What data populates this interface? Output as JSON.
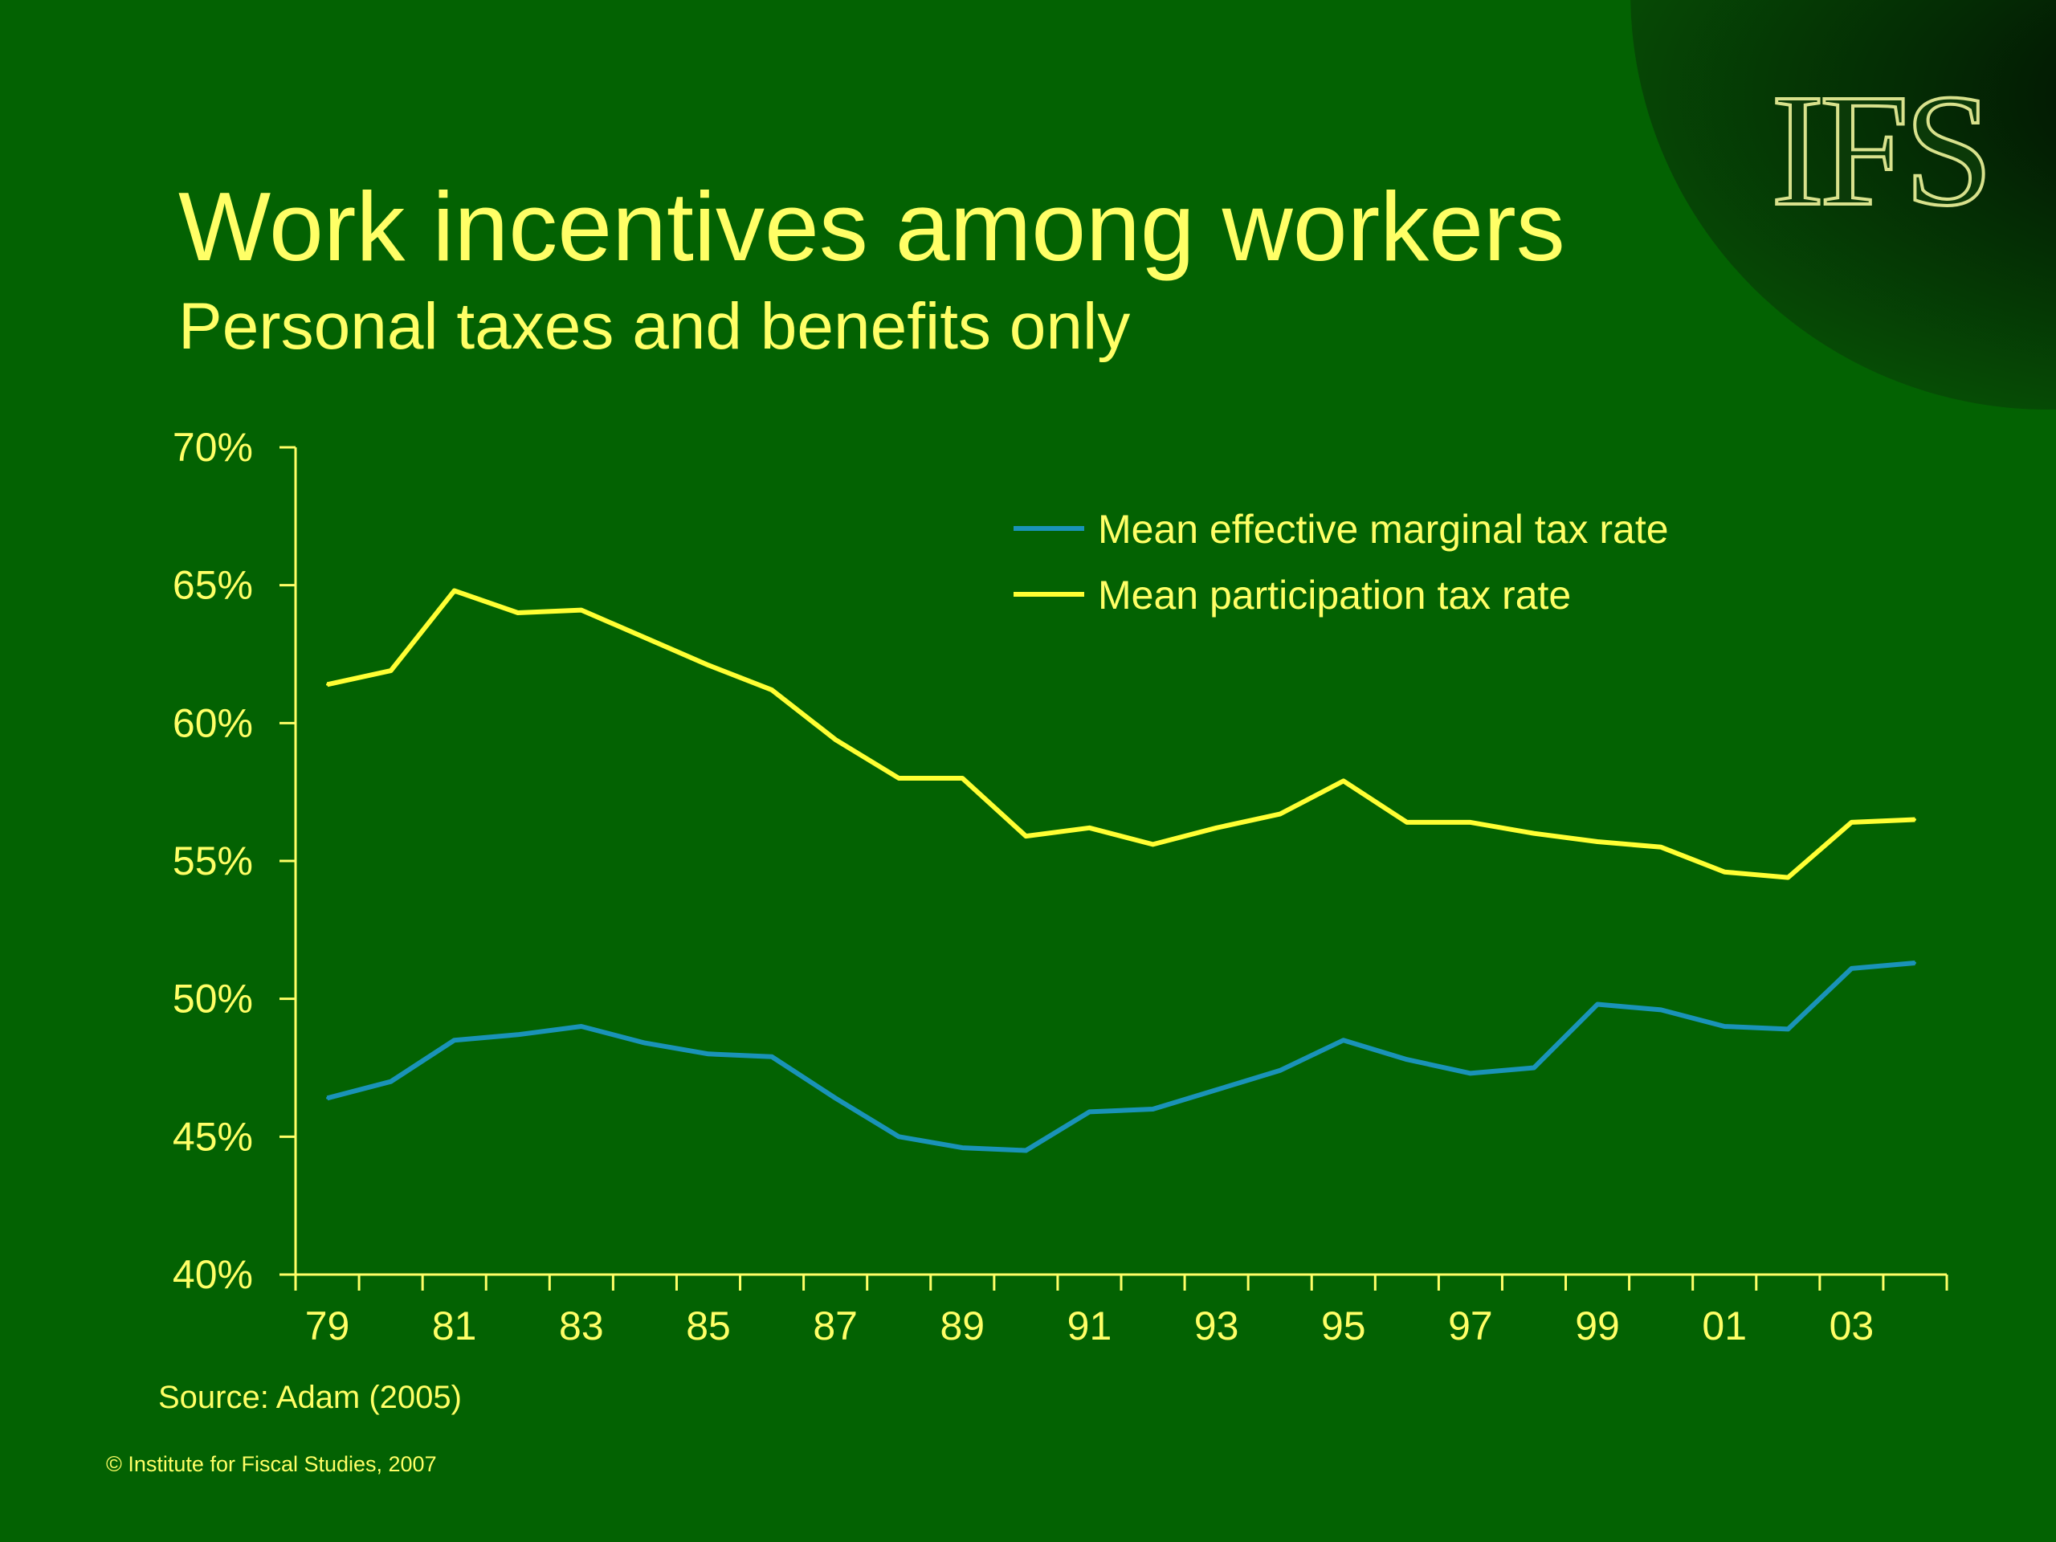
{
  "slide": {
    "logo": "IFS",
    "title": "Work incentives among workers",
    "subtitle": "Personal taxes and benefits only",
    "source": "Source: Adam (2005)",
    "copyright": "© Institute for Fiscal Studies, 2007"
  },
  "colors": {
    "background": "#036202",
    "text": "#ffff66",
    "axis": "#ffff66",
    "marginal_series": "#1a93b8",
    "participation_series": "#ffff33"
  },
  "chart_data": {
    "type": "line",
    "title": "",
    "xlabel": "",
    "ylabel": "",
    "x": [
      1979,
      1980,
      1981,
      1982,
      1983,
      1984,
      1985,
      1986,
      1987,
      1988,
      1989,
      1990,
      1991,
      1992,
      1993,
      1994,
      1995,
      1996,
      1997,
      1998,
      1999,
      2000,
      2001,
      2002,
      2003,
      2004
    ],
    "x_tick_labels": [
      "79",
      "81",
      "83",
      "85",
      "87",
      "89",
      "91",
      "93",
      "95",
      "97",
      "99",
      "01",
      "03"
    ],
    "ylim": [
      40,
      70
    ],
    "y_ticks": [
      40,
      45,
      50,
      55,
      60,
      65,
      70
    ],
    "y_tick_labels": [
      "40%",
      "45%",
      "50%",
      "55%",
      "60%",
      "65%",
      "70%"
    ],
    "legend_position": "top-right",
    "grid": false,
    "series": [
      {
        "name": "Mean effective marginal tax rate",
        "values": [
          46.4,
          47.0,
          48.5,
          48.7,
          49.0,
          48.4,
          48.0,
          47.9,
          46.4,
          45.0,
          44.6,
          44.5,
          45.9,
          46.0,
          46.7,
          47.4,
          48.5,
          47.8,
          47.3,
          47.5,
          49.8,
          49.6,
          49.0,
          48.9,
          51.1,
          51.3
        ]
      },
      {
        "name": "Mean participation tax rate",
        "values": [
          61.4,
          61.9,
          64.8,
          64.0,
          64.1,
          63.1,
          62.1,
          61.2,
          59.4,
          58.0,
          58.0,
          55.9,
          56.2,
          55.6,
          56.2,
          56.7,
          57.9,
          56.4,
          56.4,
          56.0,
          55.7,
          55.5,
          54.6,
          54.4,
          56.4,
          56.5
        ]
      }
    ]
  }
}
